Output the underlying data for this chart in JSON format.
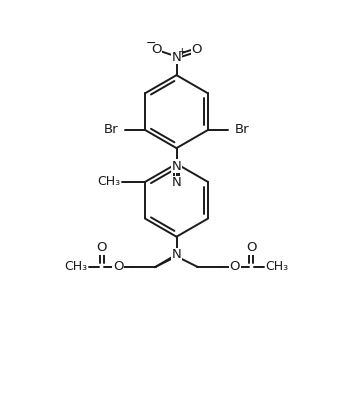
{
  "background": "#ffffff",
  "line_color": "#1a1a1a",
  "line_width": 1.4,
  "font_size": 9.5,
  "figsize": [
    3.53,
    3.97
  ],
  "dpi": 100,
  "xlim": [
    0,
    10
  ],
  "ylim": [
    0,
    11.2
  ]
}
